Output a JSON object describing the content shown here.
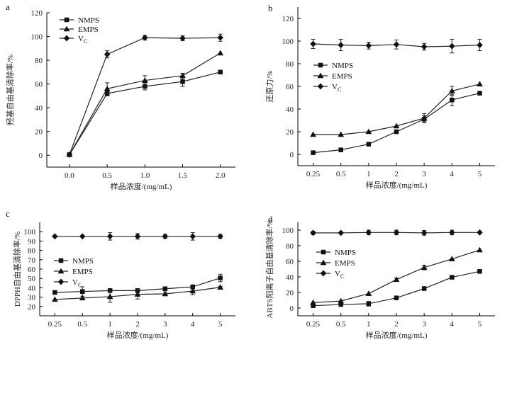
{
  "chart_data": [
    {
      "panel": "a",
      "type": "line",
      "xlabel": "样品浓度/(mg/mL)",
      "ylabel": "羟基自由基清除率/%",
      "x_axis_kind": "linear",
      "xlim": [
        -0.3,
        2.2
      ],
      "xticks": [
        "0.0",
        "0.5",
        "1.0",
        "1.5",
        "2.0"
      ],
      "x": [
        0.0,
        0.5,
        1.0,
        1.5,
        2.0
      ],
      "ylim": [
        -10,
        120
      ],
      "yticks": [
        0,
        20,
        40,
        60,
        80,
        100,
        120
      ],
      "legend_position": "top-left",
      "series": [
        {
          "name": "NMPS",
          "marker": "square",
          "values": [
            0.5,
            52,
            58,
            62,
            70
          ],
          "errors": [
            0,
            2,
            3,
            4,
            0
          ]
        },
        {
          "name": "EMPS",
          "marker": "triangle",
          "values": [
            0.5,
            56,
            63,
            67,
            86
          ],
          "errors": [
            0,
            5,
            4,
            2,
            0
          ]
        },
        {
          "name": "V",
          "name_sub": "C",
          "marker": "diamond",
          "values": [
            0.5,
            85,
            99,
            98.5,
            99
          ],
          "errors": [
            0,
            3,
            2,
            2,
            3
          ]
        }
      ]
    },
    {
      "panel": "b",
      "type": "line",
      "xlabel": "样品浓度/(mg/mL)",
      "ylabel": "还原力/%",
      "x_axis_kind": "category",
      "categories": [
        "0.25",
        "0.5",
        "1",
        "2",
        "3",
        "4",
        "5"
      ],
      "ylim": [
        -10,
        130
      ],
      "yticks": [
        0,
        20,
        40,
        60,
        80,
        100,
        120
      ],
      "legend_position": "center-left",
      "series": [
        {
          "name": "NMPS",
          "marker": "square",
          "values": [
            1.5,
            4,
            9,
            20,
            31,
            48,
            54
          ],
          "errors": [
            0,
            0,
            0,
            0,
            3,
            5,
            0
          ]
        },
        {
          "name": "EMPS",
          "marker": "triangle",
          "values": [
            17.5,
            17.5,
            20,
            25,
            32,
            56,
            62
          ],
          "errors": [
            0,
            0,
            0,
            0,
            4,
            4,
            0
          ]
        },
        {
          "name": "V",
          "name_sub": "C",
          "marker": "diamond",
          "values": [
            97.5,
            96.5,
            96,
            97,
            95,
            95.5,
            96.5
          ],
          "errors": [
            4,
            5,
            3,
            4,
            3,
            6,
            5
          ]
        }
      ]
    },
    {
      "panel": "c",
      "type": "line",
      "xlabel": "样品浓度/(mg/mL)",
      "ylabel": "DPPH自由基清除率/%",
      "x_axis_kind": "category",
      "categories": [
        "0.25",
        "0.5",
        "1",
        "2",
        "3",
        "4",
        "5"
      ],
      "ylim": [
        10,
        110
      ],
      "yticks": [
        20,
        30,
        40,
        50,
        60,
        70,
        80,
        90,
        100
      ],
      "legend_position": "center-left",
      "series": [
        {
          "name": "NMPS",
          "marker": "square",
          "values": [
            35,
            36,
            37,
            37,
            39,
            41,
            50.5
          ],
          "errors": [
            0,
            5,
            0,
            0,
            0,
            2,
            4
          ]
        },
        {
          "name": "EMPS",
          "marker": "triangle",
          "values": [
            27.5,
            29,
            30.5,
            33,
            33.5,
            36.5,
            40.5
          ],
          "errors": [
            0,
            0,
            6,
            5,
            2,
            4,
            1
          ]
        },
        {
          "name": "V",
          "name_sub": "C",
          "marker": "diamond",
          "values": [
            95,
            95,
            95,
            95,
            95,
            95,
            95
          ],
          "errors": [
            0,
            0,
            4,
            3,
            2,
            4,
            2
          ]
        }
      ]
    },
    {
      "panel": "d",
      "type": "line",
      "xlabel": "样品浓度/(mg/mL)",
      "ylabel": "ABTS阳离子自由基清除率/%",
      "x_axis_kind": "category",
      "categories": [
        "0.25",
        "0.5",
        "1",
        "2",
        "3",
        "4",
        "5"
      ],
      "ylim": [
        -10,
        110
      ],
      "yticks": [
        0,
        20,
        40,
        60,
        80,
        100
      ],
      "legend_position": "center-left",
      "series": [
        {
          "name": "NMPS",
          "marker": "square",
          "values": [
            3,
            4.5,
            5.5,
            13,
            25,
            39.5,
            47
          ],
          "errors": [
            0,
            0,
            3,
            0,
            0,
            0,
            2
          ]
        },
        {
          "name": "EMPS",
          "marker": "triangle",
          "values": [
            7,
            9,
            18.5,
            36.5,
            52,
            63,
            74.5
          ],
          "errors": [
            0,
            0,
            0,
            2,
            3,
            0,
            0
          ]
        },
        {
          "name": "V",
          "name_sub": "C",
          "marker": "diamond",
          "values": [
            96.5,
            96.5,
            97,
            97,
            96.5,
            97,
            97
          ],
          "errors": [
            2,
            0,
            3,
            3,
            3,
            3,
            0
          ]
        }
      ]
    }
  ]
}
